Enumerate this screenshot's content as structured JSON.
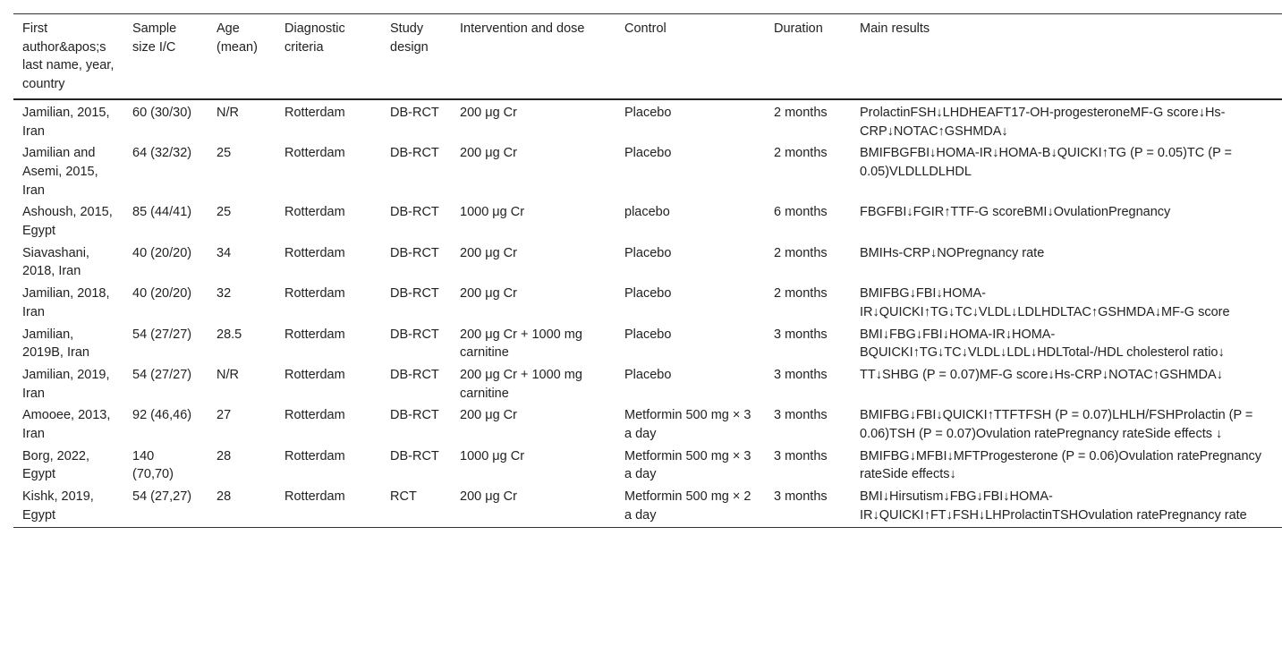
{
  "table": {
    "headers": [
      "First author&apos;s last name, year, country",
      "Sample size I/C",
      "Age (mean)",
      "Diagnostic criteria",
      "Study design",
      "Intervention and dose",
      "Control",
      "Duration",
      "Main results"
    ],
    "rows": [
      [
        "Jamilian, 2015, Iran",
        "60 (30/30)",
        "N/R",
        "Rotterdam",
        "DB-RCT",
        "200 μg Cr",
        "Placebo",
        "2 months",
        "ProlactinFSH↓LHDHEAFT17-OH-progesteroneMF-G score↓Hs-CRP↓NOTAC↑GSHMDA↓"
      ],
      [
        "Jamilian and Asemi, 2015, Iran",
        "64 (32/32)",
        "25",
        "Rotterdam",
        "DB-RCT",
        "200 μg Cr",
        "Placebo",
        "2 months",
        "BMIFBGFBI↓HOMA-IR↓HOMA-B↓QUICKI↑TG (P = 0.05)TC (P = 0.05)VLDLLDLHDL"
      ],
      [
        "Ashoush, 2015, Egypt",
        "85 (44/41)",
        "25",
        "Rotterdam",
        "DB-RCT",
        "1000 μg Cr",
        "placebo",
        "6 months",
        "FBGFBI↓FGIR↑TTF-G scoreBMI↓OvulationPregnancy"
      ],
      [
        "Siavashani, 2018, Iran",
        "40 (20/20)",
        "34",
        "Rotterdam",
        "DB-RCT",
        "200 μg Cr",
        "Placebo",
        "2 months",
        "BMIHs-CRP↓NOPregnancy rate"
      ],
      [
        "Jamilian, 2018, Iran",
        "40 (20/20)",
        "32",
        "Rotterdam",
        "DB-RCT",
        "200 μg Cr",
        "Placebo",
        "2 months",
        "BMIFBG↓FBI↓HOMA-IR↓QUICKI↑TG↓TC↓VLDL↓LDLHDLTAC↑GSHMDA↓MF-G score"
      ],
      [
        "Jamilian, 2019B, Iran",
        "54 (27/27)",
        "28.5",
        "Rotterdam",
        "DB-RCT",
        "200 μg Cr + 1000 mg carnitine",
        "Placebo",
        "3 months",
        "BMI↓FBG↓FBI↓HOMA-IR↓HOMA-BQUICKI↑TG↓TC↓VLDL↓LDL↓HDLTotal-/HDL cholesterol ratio↓"
      ],
      [
        "Jamilian, 2019, Iran",
        "54 (27/27)",
        "N/R",
        "Rotterdam",
        "DB-RCT",
        "200 μg Cr + 1000 mg carnitine",
        "Placebo",
        "3 months",
        "TT↓SHBG (P = 0.07)MF-G score↓Hs-CRP↓NOTAC↑GSHMDA↓"
      ],
      [
        "Amooee, 2013, Iran",
        "92 (46,46)",
        "27",
        "Rotterdam",
        "DB-RCT",
        "200 μg Cr",
        "Metformin 500 mg × 3 a day",
        "3 months",
        "BMIFBG↓FBI↓QUICKI↑TTFTFSH (P = 0.07)LHLH/FSHProlactin (P = 0.06)TSH (P = 0.07)Ovulation ratePregnancy rateSide effects ↓"
      ],
      [
        "Borg, 2022, Egypt",
        "140 (70,70)",
        "28",
        "Rotterdam",
        "DB-RCT",
        "1000 μg Cr",
        "Metformin 500 mg × 3 a day",
        "3 months",
        "BMIFBG↓MFBI↓MFTProgesterone (P = 0.06)Ovulation ratePregnancy rateSide effects↓"
      ],
      [
        "Kishk, 2019, Egypt",
        "54 (27,27)",
        "28",
        "Rotterdam",
        "RCT",
        "200 μg Cr",
        "Metformin 500 mg × 2 a day",
        "3 months",
        "BMI↓Hirsutism↓FBG↓FBI↓HOMA-IR↓QUICKI↑FT↓FSH↓LHProlactinTSHOvulation ratePregnancy rate"
      ]
    ]
  }
}
